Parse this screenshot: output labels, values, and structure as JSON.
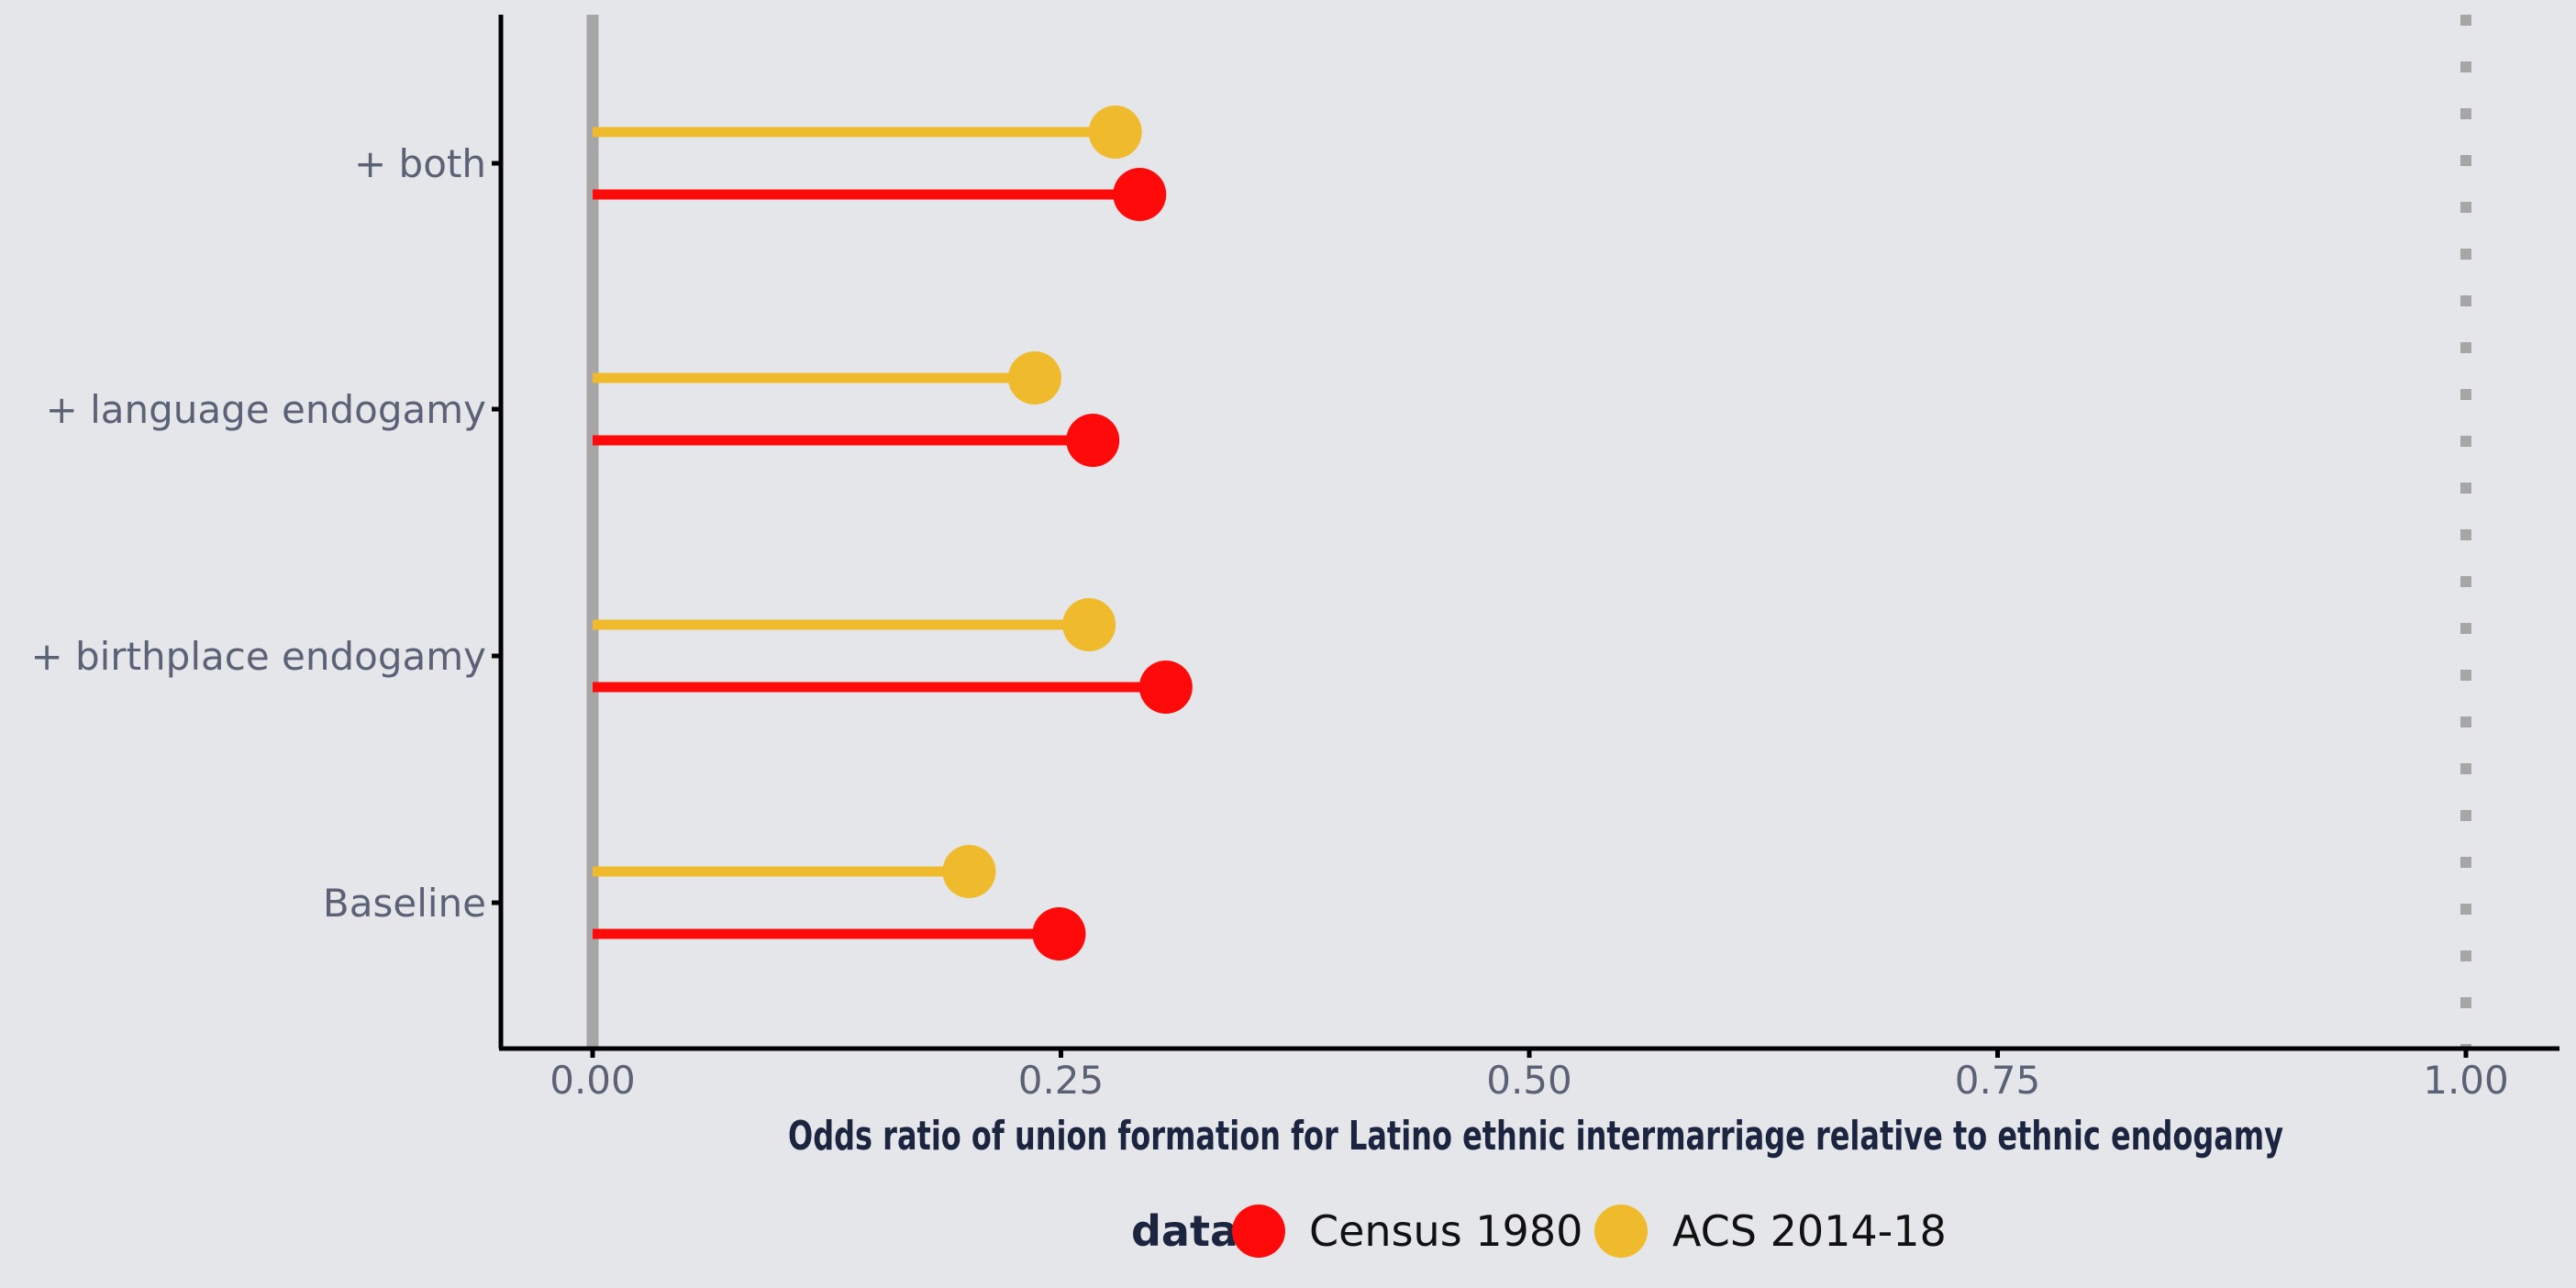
{
  "chart_data": {
    "type": "lollipop",
    "orientation": "horizontal",
    "xlabel": "Odds ratio of union formation for Latino ethnic intermarriage relative to ethnic endogamy",
    "ylabel": "",
    "xlim": [
      -0.1,
      1.1
    ],
    "x_ticks": [
      0.0,
      0.25,
      0.5,
      0.75,
      1.0
    ],
    "x_tick_labels": [
      "0.00",
      "0.25",
      "0.50",
      "0.75",
      "1.00"
    ],
    "categories": [
      "+ both",
      "+ language endogamy",
      "+ birthplace endogamy",
      "Baseline"
    ],
    "reference_lines": [
      {
        "x": 0.0,
        "style": "solid",
        "color": "#a6a6a6"
      },
      {
        "x": 1.0,
        "style": "dotted",
        "color": "#a6a6a6"
      }
    ],
    "series": [
      {
        "name": "Census 1980",
        "color": "#ff0a0a",
        "values": [
          0.292,
          0.267,
          0.306,
          0.249
        ]
      },
      {
        "name": "ACS 2014-18",
        "color": "#efbb2c",
        "values": [
          0.279,
          0.236,
          0.265,
          0.201
        ]
      }
    ],
    "legend": {
      "title": "data",
      "position": "bottom"
    },
    "grid": false
  }
}
